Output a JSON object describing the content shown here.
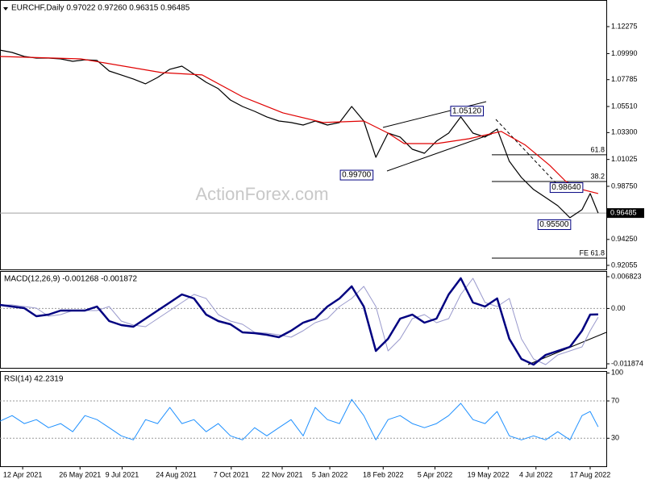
{
  "chart_data": [
    {
      "type": "line",
      "title": "EURCHF,Daily  0.97022 0.97260 0.96315 0.96485",
      "watermark": "ActionForex.com",
      "xlim": [
        0,
        50
      ],
      "ylim": [
        0.9171,
        1.1453
      ],
      "yticks": [
        1.12275,
        {
          "value": 1.0999,
          "label": "1.09990"
        },
        1.07785,
        {
          "value": 1.0551,
          "label": "1.05510"
        },
        {
          "value": 1.033,
          "label": "1.03300"
        },
        1.01025,
        {
          "value": 0.9875,
          "label": "0.98750"
        },
        {
          "value": 0.9425,
          "label": "0.94250"
        },
        0.92055
      ],
      "series": [
        {
          "color": "#000000",
          "x": [
            0,
            1,
            2,
            3,
            4,
            5,
            6,
            7,
            8,
            9,
            10,
            11,
            12,
            13,
            14,
            15,
            16,
            17,
            18,
            19,
            20,
            21,
            22,
            23,
            24,
            25,
            26,
            27,
            28,
            29,
            30,
            31,
            32,
            33,
            34,
            35,
            36,
            37,
            38,
            39,
            40,
            41,
            42,
            43,
            44,
            45,
            46,
            47,
            48,
            48.67,
            49.33
          ],
          "values": [
            1.1029,
            1.1009,
            1.0975,
            1.0961,
            1.0961,
            1.0954,
            1.0934,
            1.0947,
            1.0941,
            1.0852,
            1.0818,
            1.0784,
            1.0743,
            1.0797,
            1.0866,
            1.0893,
            1.0825,
            1.0756,
            1.0702,
            1.0606,
            1.0551,
            1.051,
            1.0463,
            1.0428,
            1.0415,
            1.0394,
            1.0428,
            1.0394,
            1.0415,
            1.0551,
            1.0428,
            1.0121,
            1.0326,
            1.0292,
            1.0189,
            1.0155,
            1.0258,
            1.0326,
            1.0463,
            1.0326,
            1.0292,
            1.036,
            1.0087,
            0.995,
            0.9848,
            0.978,
            0.9711,
            0.9609,
            0.9677,
            0.9814,
            0.96485
          ]
        },
        {
          "color": "#e00000",
          "x": [
            0,
            6.67,
            13.33,
            16.67,
            20,
            23.33,
            26.67,
            30,
            32,
            33.33,
            36,
            38.67,
            41.33,
            43.33,
            45.33,
            46.67,
            48,
            49.33
          ],
          "values": [
            1.0975,
            1.0954,
            1.0838,
            1.0818,
            1.0633,
            1.0497,
            1.0415,
            1.0428,
            1.0326,
            1.0237,
            1.0237,
            1.0278,
            1.034,
            1.0224,
            1.0053,
            0.9916,
            0.9848,
            0.9814
          ]
        }
      ],
      "swing_labels": [
        {
          "label": "0.99700",
          "value": 0.997,
          "x": 29.4
        },
        {
          "label": "1.05120",
          "value": 1.0512,
          "x": 38.5
        },
        {
          "label": "0.98640",
          "value": 0.9864,
          "x": 46.7
        },
        {
          "label": "0.95500",
          "value": 0.955,
          "x": 45.7
        }
      ],
      "levels": [
        {
          "label": "61.8",
          "value": 1.0142
        },
        {
          "label": "38.2",
          "value": 0.9916
        },
        {
          "label": "FE 61.8",
          "value": 0.9267
        }
      ],
      "current_price": {
        "label": "0.96485",
        "value": 0.96485
      }
    },
    {
      "type": "line",
      "title": "MACD(12,26,9) -0.001268 -0.001872",
      "xlim": [
        0,
        50
      ],
      "ylim": [
        -0.012739,
        0.008035
      ],
      "yticks": [
        0.006823,
        {
          "value": 0,
          "label": "0.00"
        },
        -0.011874
      ],
      "ref_lines": [
        0
      ],
      "series": [
        {
          "color": "#9999cc",
          "width": 1,
          "x": [
            0,
            1,
            2,
            3,
            4,
            5,
            6,
            7,
            8,
            9,
            10,
            11,
            12,
            13,
            14,
            15,
            16,
            17,
            18,
            19,
            20,
            21,
            22,
            23,
            24,
            25,
            26,
            27,
            28,
            29,
            30,
            31,
            32,
            33,
            34,
            35,
            36,
            37,
            38,
            39,
            40,
            41,
            42,
            43,
            44,
            45,
            46,
            47,
            48,
            48.67,
            49.33
          ],
          "values": [
            0.00076,
            0.00076,
            0.00042,
            7e-05,
            -0.00166,
            -0.00132,
            -0.00045,
            -0.00045,
            -0.00045,
            0.00042,
            -0.0027,
            -0.00357,
            -0.00391,
            -0.00218,
            -0.00045,
            0.00128,
            0.00301,
            0.00215,
            -0.00132,
            -0.0027,
            -0.00339,
            -0.00512,
            -0.0053,
            -0.00564,
            -0.00616,
            -0.00478,
            -0.00305,
            -0.00218,
            0.00042,
            0.00215,
            0.00474,
            0.00042,
            -0.0091,
            -0.00651,
            -0.00218,
            -0.00132,
            -0.00305,
            -0.00218,
            0.00301,
            0.00647,
            0.00128,
            0.00042,
            0.00215,
            -0.00651,
            -0.01084,
            -0.01205,
            -0.00997,
            -0.0091,
            -0.00824,
            -0.00478,
            -0.00187
          ]
        },
        {
          "color": "#000080",
          "width": 2.5,
          "x": [
            0,
            1,
            2,
            3,
            4,
            5,
            6,
            7,
            8,
            9,
            10,
            11,
            12,
            13,
            14,
            15,
            16,
            17,
            18,
            19,
            20,
            21,
            22,
            23,
            24,
            25,
            26,
            27,
            28,
            29,
            30,
            31,
            32,
            33,
            34,
            35,
            36,
            37,
            38,
            39,
            40,
            41,
            42,
            43,
            44,
            45,
            46,
            47,
            48,
            48.67,
            49.33
          ],
          "values": [
            0.00076,
            0.00042,
            7e-05,
            -0.00166,
            -0.00132,
            -0.00045,
            -0.00045,
            -0.00045,
            0.00042,
            -0.0027,
            -0.00357,
            -0.00391,
            -0.00218,
            -0.00045,
            0.00128,
            0.00301,
            0.00215,
            -0.00132,
            -0.0027,
            -0.00339,
            -0.00512,
            -0.0053,
            -0.00564,
            -0.00616,
            -0.00478,
            -0.00305,
            -0.00218,
            0.00042,
            0.00215,
            0.00474,
            0.00042,
            -0.0091,
            -0.00651,
            -0.00218,
            -0.00132,
            -0.00305,
            -0.00218,
            0.00301,
            0.00647,
            0.00128,
            0.00042,
            0.00215,
            -0.00651,
            -0.01084,
            -0.01205,
            -0.00997,
            -0.0091,
            -0.00824,
            -0.00478,
            -0.00132,
            -0.00127
          ]
        }
      ]
    },
    {
      "type": "line",
      "title": "RSI(14) 42.2319",
      "xlim": [
        0,
        50
      ],
      "ylim": [
        0,
        102
      ],
      "yticks": [
        100,
        70,
        30
      ],
      "ref_lines": [
        70,
        30
      ],
      "xticks": [
        {
          "value": 1.87,
          "label": "12 Apr 2021"
        },
        {
          "value": 6.6,
          "label": "26 May 2021"
        },
        {
          "value": 10.07,
          "label": "9 Jul 2021"
        },
        {
          "value": 14.53,
          "label": "24 Aug 2021"
        },
        {
          "value": 19.07,
          "label": "7 Oct 2021"
        },
        {
          "value": 23.27,
          "label": "22 Nov 2021"
        },
        {
          "value": 27.2,
          "label": "5 Jan 2022"
        },
        {
          "value": 31.6,
          "label": "18 Feb 2022"
        },
        {
          "value": 35.87,
          "label": "5 Apr 2022"
        },
        {
          "value": 40.27,
          "label": "19 May 2022"
        },
        {
          "value": 44.2,
          "label": "4 Jul 2022"
        },
        {
          "value": 48.67,
          "label": "17 Aug 2022"
        }
      ],
      "series": [
        {
          "color": "#1e90ff",
          "width": 1,
          "x": [
            0,
            1,
            2,
            3,
            4,
            5,
            6,
            7,
            8,
            9,
            10,
            11,
            12,
            13,
            14,
            15,
            16,
            17,
            18,
            19,
            20,
            21,
            22,
            23,
            24,
            25,
            26,
            27,
            28,
            29,
            30,
            31,
            32,
            33,
            34,
            35,
            36,
            37,
            38,
            39,
            40,
            41,
            42,
            43,
            44,
            45,
            46,
            47,
            48,
            48.67,
            49.33
          ],
          "values": [
            48.3,
            54.3,
            45.7,
            50,
            41.3,
            45.7,
            37,
            54.3,
            50,
            41.3,
            32.6,
            28.3,
            50,
            45.7,
            63,
            45.7,
            50,
            37,
            45.7,
            32.6,
            28.3,
            41.3,
            32.6,
            41.3,
            50,
            32.6,
            63,
            50,
            45.7,
            71.7,
            54.3,
            28.3,
            50,
            54.3,
            45.7,
            41.3,
            45.7,
            54.3,
            67.4,
            50,
            45.7,
            58.7,
            32.6,
            28.3,
            32.6,
            28.3,
            37,
            28.3,
            54.3,
            58.7,
            42.2
          ]
        }
      ]
    }
  ]
}
